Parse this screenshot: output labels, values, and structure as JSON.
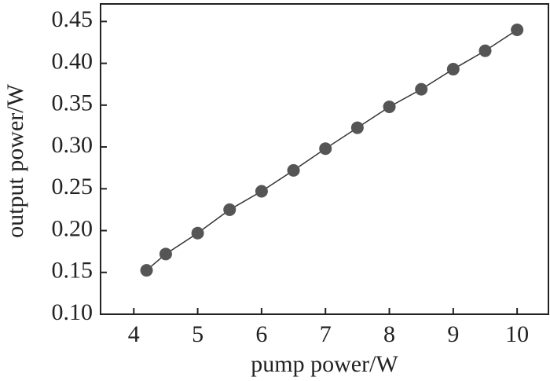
{
  "chart_data": {
    "type": "line",
    "x_label": "pump power/W",
    "y_label": "output power/W",
    "x": [
      4.2,
      4.5,
      5,
      5.5,
      6,
      6.5,
      7,
      7.5,
      8,
      8.5,
      9,
      9.5,
      10
    ],
    "series": [
      {
        "color": "#555555",
        "values": [
          0.1525,
          0.172,
          0.197,
          0.225,
          0.247,
          0.272,
          0.298,
          0.323,
          0.348,
          0.369,
          0.393,
          0.415,
          0.44
        ]
      }
    ],
    "xlim": [
      3.48,
      10.49
    ],
    "xticks": [
      4,
      5,
      6,
      7,
      8,
      9,
      10
    ],
    "ylim": [
      0.1,
      0.471
    ],
    "yticks": [
      {
        "value": 0.1,
        "label": "0.10"
      },
      0.15,
      {
        "value": 0.2,
        "label": "0.20"
      },
      0.25,
      {
        "value": 0.3,
        "label": "0.30"
      },
      0.35,
      {
        "value": 0.4,
        "label": "0.40"
      },
      0.45
    ],
    "markers": true
  }
}
